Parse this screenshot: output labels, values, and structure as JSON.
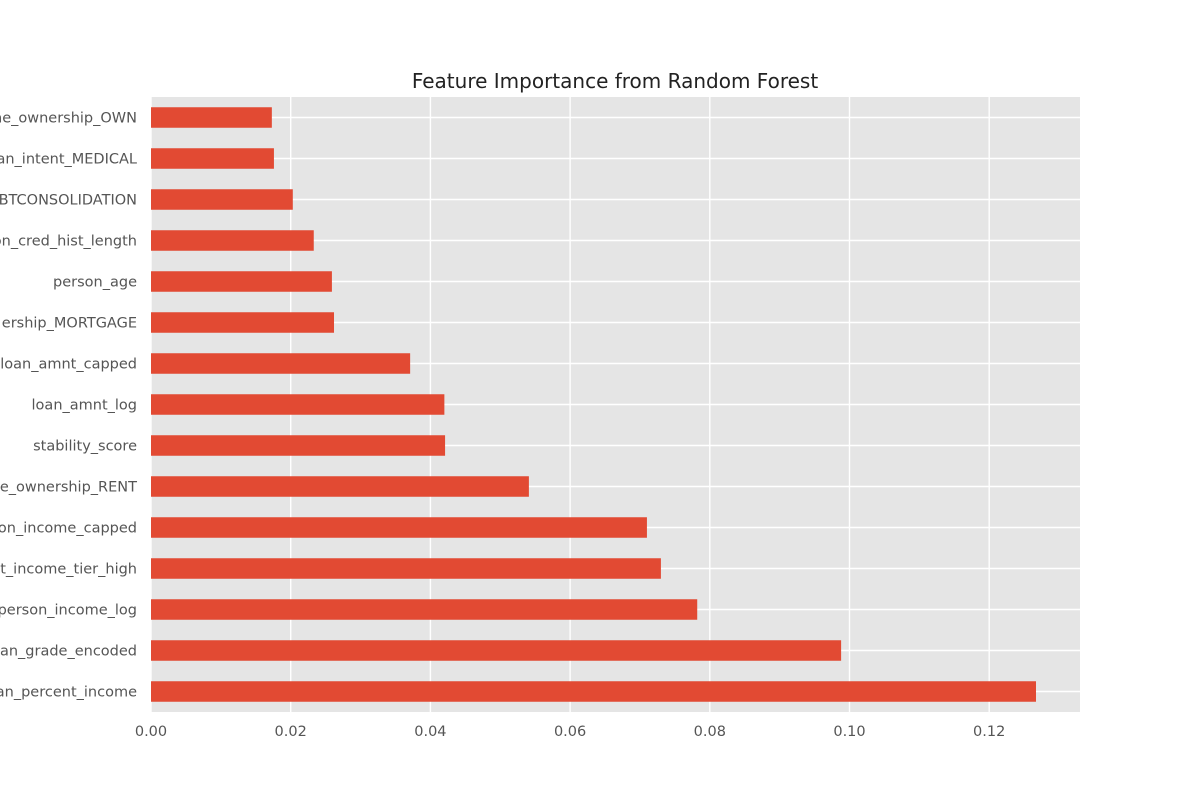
{
  "chart_data": {
    "type": "bar",
    "orientation": "horizontal",
    "title": "Feature Importance from Random Forest",
    "xlabel": "",
    "ylabel": "",
    "categories": [
      "loan_percent_income",
      "loan_grade_encoded",
      "person_income_log",
      "nt_income_tier_high",
      "son_income_capped",
      "e_ownership_RENT",
      "stability_score",
      "loan_amnt_log",
      "loan_amnt_capped",
      "ership_MORTGAGE",
      "person_age",
      "on_cred_hist_length",
      "BTCONSOLIDATION",
      "an_intent_MEDICAL",
      "ne_ownership_OWN"
    ],
    "values": [
      0.1267,
      0.0988,
      0.0782,
      0.073,
      0.071,
      0.0541,
      0.0421,
      0.042,
      0.0371,
      0.0262,
      0.0259,
      0.0233,
      0.0203,
      0.0176,
      0.0173
    ],
    "xlim": [
      0,
      0.133
    ],
    "xticks": [
      "0.00",
      "0.02",
      "0.04",
      "0.06",
      "0.08",
      "0.10",
      "0.12"
    ],
    "grid": true,
    "bar_color": "#E24A33",
    "plot_background": "#E5E5E5",
    "grid_color": "#FFFFFF"
  }
}
